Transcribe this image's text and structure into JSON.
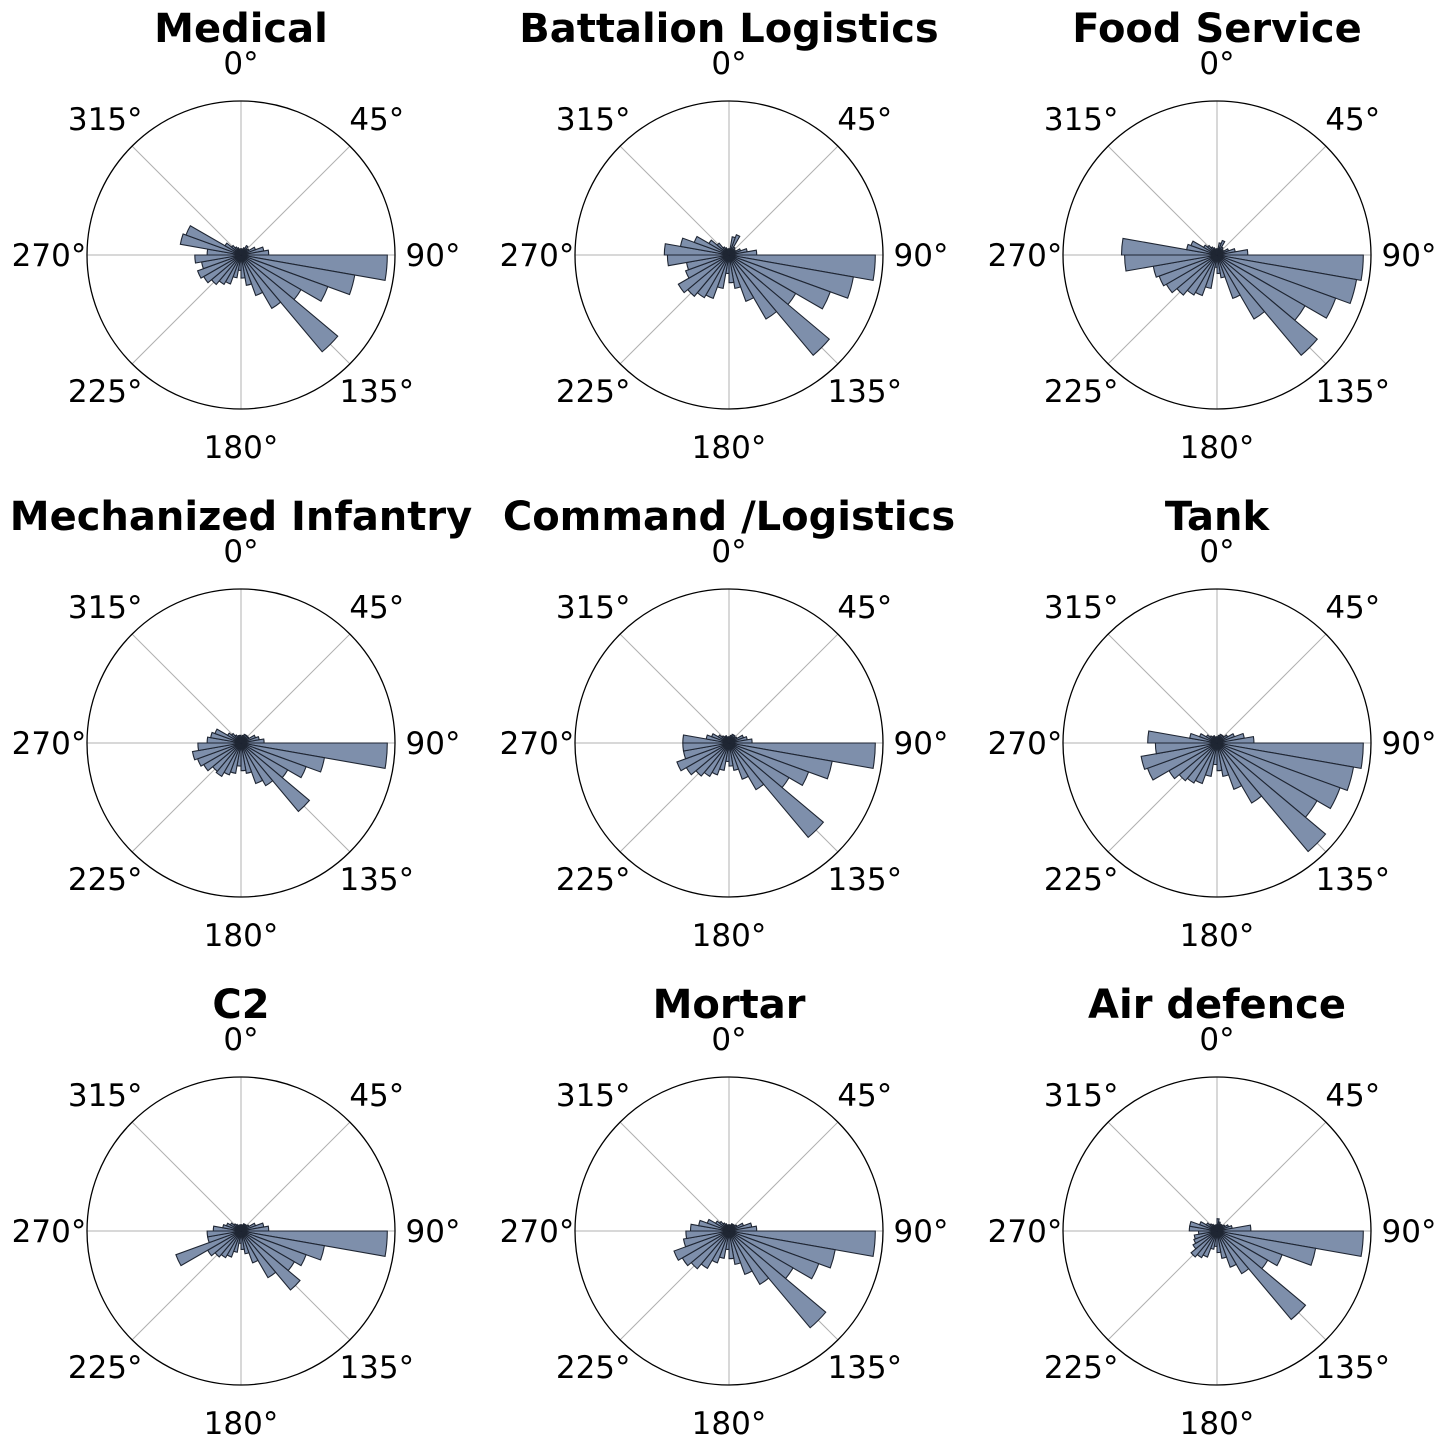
{
  "chart_data": {
    "type": "polar-bar",
    "theta_zero": "north",
    "theta_direction": "clockwise",
    "bin_width_deg": 10,
    "angle_tick_labels": [
      "0°",
      "45°",
      "90°",
      "135°",
      "180°",
      "225°",
      "270°",
      "315°"
    ],
    "grid": true,
    "radial_tick_labels": "none",
    "colors": {
      "bar_fill": "#7e8fab",
      "bar_edge": "#1f2633",
      "grid": "#b0b0b0",
      "axis": "#000000"
    },
    "rmax": 1.0,
    "angle_bin_centers_deg": [
      5,
      15,
      25,
      35,
      45,
      55,
      65,
      75,
      85,
      95,
      105,
      115,
      125,
      135,
      145,
      155,
      165,
      175,
      185,
      195,
      205,
      215,
      225,
      235,
      245,
      255,
      265,
      275,
      285,
      295,
      305,
      315,
      325,
      335,
      345,
      355
    ],
    "panels": [
      {
        "title": "Medical",
        "values": [
          0.04,
          0.04,
          0.05,
          0.07,
          0.05,
          0.06,
          0.1,
          0.15,
          0.18,
          0.95,
          0.75,
          0.6,
          0.45,
          0.82,
          0.4,
          0.28,
          0.2,
          0.15,
          0.1,
          0.15,
          0.2,
          0.22,
          0.25,
          0.28,
          0.3,
          0.26,
          0.3,
          0.22,
          0.4,
          0.38,
          0.12,
          0.08,
          0.06,
          0.05,
          0.04,
          0.04
        ]
      },
      {
        "title": "Battalion Logistics",
        "values": [
          0.04,
          0.12,
          0.14,
          0.06,
          0.05,
          0.05,
          0.08,
          0.12,
          0.18,
          0.95,
          0.82,
          0.7,
          0.5,
          0.85,
          0.48,
          0.32,
          0.22,
          0.18,
          0.12,
          0.22,
          0.3,
          0.32,
          0.35,
          0.38,
          0.3,
          0.28,
          0.4,
          0.42,
          0.32,
          0.24,
          0.15,
          0.1,
          0.06,
          0.05,
          0.04,
          0.04
        ]
      },
      {
        "title": "Food Service",
        "values": [
          0.04,
          0.08,
          0.1,
          0.06,
          0.05,
          0.05,
          0.08,
          0.12,
          0.2,
          0.95,
          0.92,
          0.82,
          0.66,
          0.85,
          0.48,
          0.3,
          0.15,
          0.12,
          0.08,
          0.22,
          0.28,
          0.3,
          0.34,
          0.38,
          0.4,
          0.42,
          0.6,
          0.62,
          0.2,
          0.18,
          0.1,
          0.08,
          0.06,
          0.05,
          0.04,
          0.04
        ]
      },
      {
        "title": "Mechanized Infantry",
        "values": [
          0.04,
          0.05,
          0.06,
          0.06,
          0.06,
          0.06,
          0.1,
          0.12,
          0.15,
          0.95,
          0.55,
          0.45,
          0.35,
          0.58,
          0.32,
          0.28,
          0.2,
          0.18,
          0.15,
          0.2,
          0.22,
          0.25,
          0.24,
          0.28,
          0.3,
          0.32,
          0.28,
          0.22,
          0.2,
          0.18,
          0.1,
          0.08,
          0.06,
          0.05,
          0.05,
          0.05
        ]
      },
      {
        "title": "Command /Logistics",
        "values": [
          0.04,
          0.05,
          0.06,
          0.06,
          0.05,
          0.06,
          0.1,
          0.12,
          0.15,
          0.95,
          0.68,
          0.55,
          0.45,
          0.8,
          0.35,
          0.25,
          0.18,
          0.15,
          0.12,
          0.18,
          0.22,
          0.25,
          0.28,
          0.32,
          0.36,
          0.3,
          0.3,
          0.3,
          0.15,
          0.12,
          0.08,
          0.06,
          0.05,
          0.05,
          0.04,
          0.04
        ]
      },
      {
        "title": "Tank",
        "values": [
          0.04,
          0.05,
          0.06,
          0.06,
          0.06,
          0.08,
          0.12,
          0.18,
          0.24,
          0.95,
          0.9,
          0.85,
          0.75,
          0.92,
          0.45,
          0.32,
          0.22,
          0.18,
          0.14,
          0.22,
          0.28,
          0.3,
          0.32,
          0.36,
          0.48,
          0.5,
          0.4,
          0.45,
          0.18,
          0.12,
          0.08,
          0.06,
          0.05,
          0.05,
          0.04,
          0.04
        ]
      },
      {
        "title": "C2",
        "values": [
          0.04,
          0.04,
          0.05,
          0.05,
          0.05,
          0.06,
          0.1,
          0.15,
          0.18,
          0.95,
          0.55,
          0.45,
          0.4,
          0.5,
          0.35,
          0.22,
          0.15,
          0.12,
          0.08,
          0.14,
          0.18,
          0.2,
          0.22,
          0.25,
          0.45,
          0.22,
          0.22,
          0.18,
          0.12,
          0.1,
          0.08,
          0.06,
          0.05,
          0.04,
          0.04,
          0.04
        ]
      },
      {
        "title": "Mortar",
        "values": [
          0.04,
          0.04,
          0.05,
          0.05,
          0.05,
          0.06,
          0.1,
          0.15,
          0.18,
          0.95,
          0.7,
          0.62,
          0.48,
          0.82,
          0.4,
          0.3,
          0.22,
          0.18,
          0.12,
          0.18,
          0.22,
          0.28,
          0.32,
          0.35,
          0.38,
          0.3,
          0.28,
          0.25,
          0.2,
          0.15,
          0.1,
          0.08,
          0.06,
          0.05,
          0.04,
          0.04
        ]
      },
      {
        "title": "Air defence",
        "values": [
          0.08,
          0.06,
          0.05,
          0.05,
          0.05,
          0.06,
          0.08,
          0.1,
          0.22,
          0.95,
          0.65,
          0.45,
          0.38,
          0.75,
          0.32,
          0.25,
          0.18,
          0.14,
          0.1,
          0.12,
          0.18,
          0.2,
          0.22,
          0.18,
          0.16,
          0.15,
          0.12,
          0.18,
          0.18,
          0.12,
          0.08,
          0.06,
          0.05,
          0.04,
          0.04,
          0.04
        ]
      }
    ]
  }
}
